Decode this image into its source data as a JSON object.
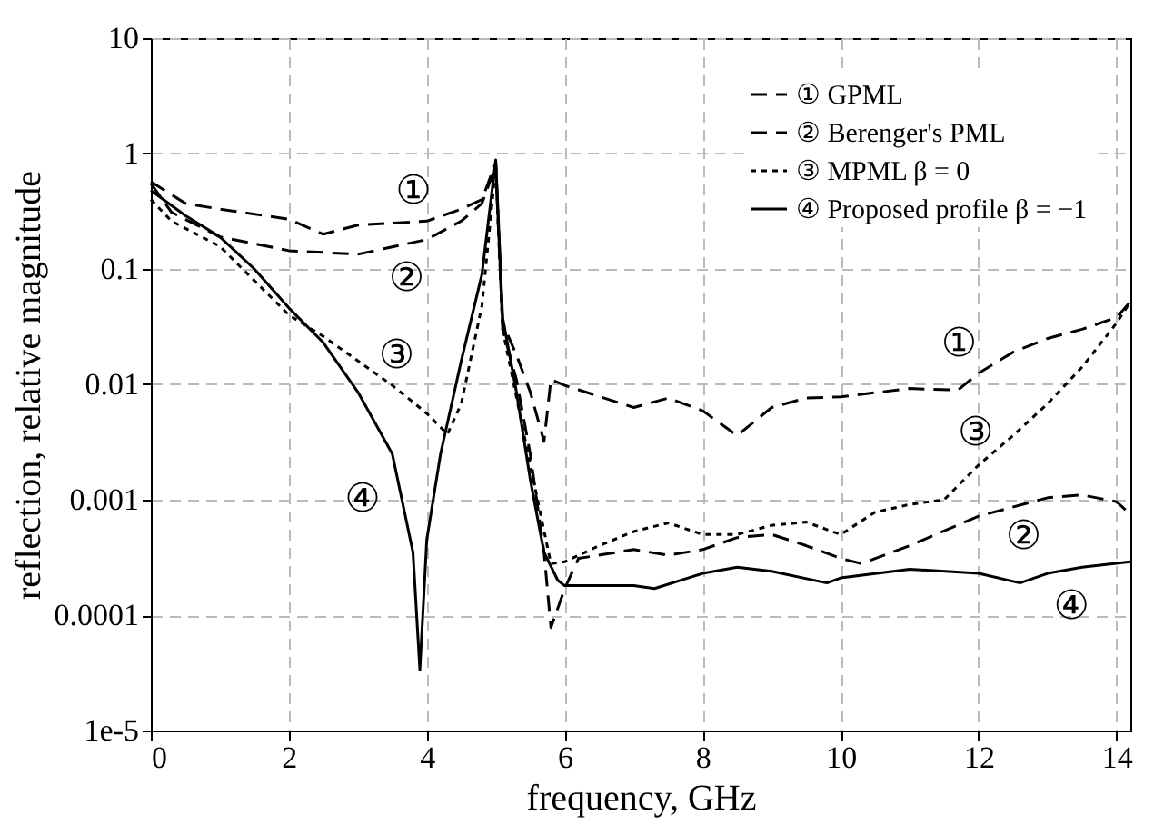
{
  "chart_data": {
    "type": "line",
    "xlabel": "frequency, GHz",
    "ylabel": "reflection, relative magnitude",
    "xlim": [
      0,
      14.2
    ],
    "xticks": [
      0,
      2,
      4,
      6,
      8,
      10,
      12,
      14
    ],
    "ylim": [
      1e-05,
      10
    ],
    "yticks": [
      {
        "value": 1e-05,
        "label": "1e-5"
      },
      0.0001,
      0.001,
      0.01,
      0.1,
      1,
      10
    ],
    "log": "y",
    "grid": true,
    "legend": "top right",
    "marker": "none",
    "series": [
      {
        "name": "① GPML",
        "color": "#000000",
        "line_style": "dashed",
        "x": [
          0,
          0.5,
          1,
          2,
          2.5,
          3,
          4,
          4.5,
          4.8,
          5,
          5.1,
          5.3,
          5.5,
          5.7,
          5.8,
          6,
          7,
          7.5,
          8,
          8.5,
          9,
          9.5,
          10,
          11,
          11.7,
          12,
          12.5,
          13,
          13.5,
          14,
          14.2
        ],
        "values": [
          0.57,
          0.37,
          0.33,
          0.27,
          0.2,
          0.24,
          0.26,
          0.33,
          0.4,
          0.83,
          0.034,
          0.018,
          0.0086,
          0.0032,
          0.011,
          0.0098,
          0.0063,
          0.0076,
          0.0059,
          0.0036,
          0.0063,
          0.0076,
          0.0078,
          0.0092,
          0.0089,
          0.0125,
          0.019,
          0.025,
          0.03,
          0.038,
          0.052
        ]
      },
      {
        "name": "② Berenger's PML",
        "color": "#000000",
        "line_style": "dashed",
        "x": [
          0,
          0.3,
          1,
          2,
          3,
          4,
          4.5,
          4.8,
          5,
          5.1,
          5.3,
          5.5,
          5.7,
          5.8,
          6,
          6.2,
          7,
          7.5,
          8,
          8.5,
          9,
          9.5,
          10,
          10.3,
          11,
          12,
          13,
          13.5,
          14,
          14.2
        ],
        "values": [
          0.55,
          0.31,
          0.19,
          0.144,
          0.134,
          0.18,
          0.26,
          0.37,
          0.78,
          0.03,
          0.011,
          0.0025,
          0.00035,
          7.8e-05,
          0.00017,
          0.00031,
          0.00037,
          0.00033,
          0.00037,
          0.00047,
          0.0005,
          0.0004,
          0.00031,
          0.00028,
          0.0004,
          0.00072,
          0.00104,
          0.0011,
          0.00096,
          0.00075
        ]
      },
      {
        "name": "③ MPML   β = 0",
        "color": "#000000",
        "line_style": "dotted",
        "x": [
          0,
          0.3,
          1,
          2,
          2.5,
          3,
          3.5,
          4,
          4.3,
          4.5,
          4.8,
          5,
          5.1,
          5.5,
          5.8,
          6,
          6.5,
          7,
          7.5,
          8,
          8.5,
          9,
          9.5,
          10,
          10.5,
          11,
          11.5,
          12,
          12.5,
          13,
          13.5,
          14,
          14.2
        ],
        "values": [
          0.4,
          0.26,
          0.157,
          0.04,
          0.026,
          0.016,
          0.0098,
          0.0056,
          0.0037,
          0.0068,
          0.048,
          0.78,
          0.03,
          0.002,
          0.00028,
          0.00029,
          0.0004,
          0.00053,
          0.00063,
          0.0005,
          0.0005,
          0.0006,
          0.00064,
          0.0005,
          0.00078,
          0.00091,
          0.001,
          0.002,
          0.0036,
          0.0068,
          0.0141,
          0.034,
          0.052
        ]
      },
      {
        "name": "④ Proposed profile  β = −1",
        "color": "#000000",
        "line_style": "solid",
        "x": [
          0,
          0.5,
          1,
          1.5,
          2,
          2.5,
          3,
          3.5,
          3.8,
          3.9,
          4,
          4.2,
          4.5,
          4.8,
          5,
          5.1,
          5.3,
          5.5,
          5.7,
          5.9,
          6,
          7,
          7.3,
          8,
          8.5,
          9,
          9.8,
          10,
          11,
          12,
          12.6,
          13,
          13.5,
          14.2
        ],
        "values": [
          0.48,
          0.29,
          0.19,
          0.1,
          0.046,
          0.023,
          0.0086,
          0.0025,
          0.00035,
          3.35e-05,
          0.00045,
          0.0025,
          0.016,
          0.09,
          0.88,
          0.038,
          0.0086,
          0.0015,
          0.00035,
          0.0002,
          0.00018,
          0.00018,
          0.00017,
          0.00023,
          0.00026,
          0.00024,
          0.00019,
          0.00021,
          0.00025,
          0.00023,
          0.00019,
          0.00023,
          0.00026,
          0.00029
        ]
      }
    ],
    "annotations": [
      "①",
      "②",
      "③",
      "④",
      "①",
      "③",
      "②",
      "④"
    ]
  }
}
